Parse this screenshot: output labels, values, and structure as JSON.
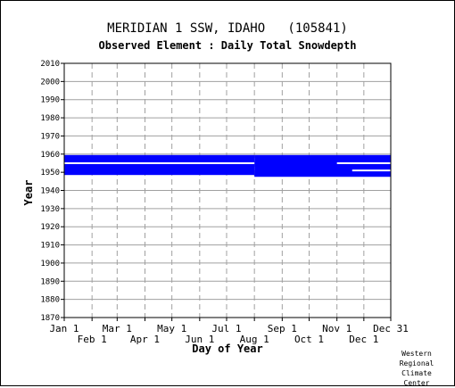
{
  "title": "MERIDIAN 1 SSW, IDAHO   (105841)",
  "subtitle": "Observed Element : Daily Total Snowdepth",
  "credit": [
    "Western",
    "Regional",
    "Climate",
    "Center"
  ],
  "colors": {
    "data": "#0000ff",
    "grid": "#a0a0a0",
    "axis": "#000000"
  },
  "chart_data": {
    "type": "heatmap",
    "ylabel": "Year",
    "xlabel": "Day of Year",
    "ylim": [
      1870,
      2010
    ],
    "xlim": [
      1,
      365
    ],
    "y_ticks": [
      1870,
      1880,
      1890,
      1900,
      1910,
      1920,
      1930,
      1940,
      1950,
      1960,
      1970,
      1980,
      1990,
      2000,
      2010
    ],
    "x_ticks_upper": [
      {
        "label": "Jan 1",
        "day": 1
      },
      {
        "label": "Mar 1",
        "day": 60
      },
      {
        "label": "May 1",
        "day": 121
      },
      {
        "label": "Jul 1",
        "day": 182
      },
      {
        "label": "Sep 1",
        "day": 244
      },
      {
        "label": "Nov 1",
        "day": 305
      },
      {
        "label": "Dec 31",
        "day": 365
      }
    ],
    "x_ticks_lower": [
      {
        "label": "Feb 1",
        "day": 32
      },
      {
        "label": "Apr 1",
        "day": 91
      },
      {
        "label": "Jun 1",
        "day": 152
      },
      {
        "label": "Aug 1",
        "day": 213
      },
      {
        "label": "Oct 1",
        "day": 274
      },
      {
        "label": "Dec 1",
        "day": 335
      }
    ],
    "grid": true,
    "observed_periods": [
      {
        "from_year": 1948.5,
        "to_year": 1959.5,
        "from_day": 1,
        "to_day": 213
      },
      {
        "from_year": 1947.5,
        "to_year": 1959.5,
        "from_day": 213,
        "to_day": 365
      }
    ],
    "gaps": [
      {
        "year": 1955,
        "from_day": 1,
        "to_day": 213
      },
      {
        "year": 1955,
        "from_day": 305,
        "to_day": 365
      },
      {
        "year": 1951,
        "from_day": 322,
        "to_day": 365
      }
    ]
  }
}
